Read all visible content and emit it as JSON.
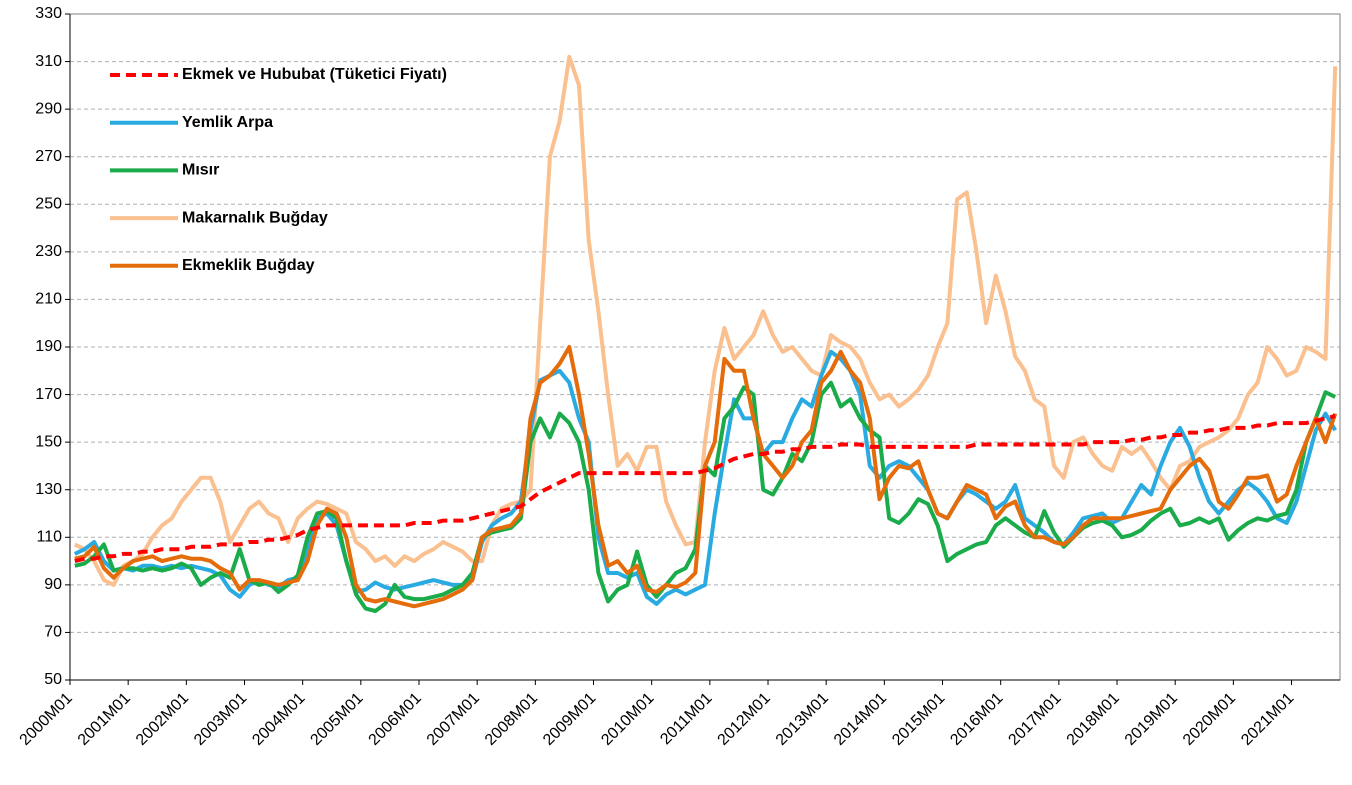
{
  "chart_data": {
    "type": "line",
    "categories": [
      "2000M01",
      null,
      null,
      null,
      null,
      null,
      "2001M01",
      null,
      null,
      null,
      null,
      null,
      "2002M01",
      null,
      null,
      null,
      null,
      null,
      "2003M01",
      null,
      null,
      null,
      null,
      null,
      "2004M01",
      null,
      null,
      null,
      null,
      null,
      "2005M01",
      null,
      null,
      null,
      null,
      null,
      "2006M01",
      null,
      null,
      null,
      null,
      null,
      "2007M01",
      null,
      null,
      null,
      null,
      null,
      "2008M01",
      null,
      null,
      null,
      null,
      null,
      "2009M01",
      null,
      null,
      null,
      null,
      null,
      "2010M01",
      null,
      null,
      null,
      null,
      null,
      "2011M01",
      null,
      null,
      null,
      null,
      null,
      "2012M01",
      null,
      null,
      null,
      null,
      null,
      "2013M01",
      null,
      null,
      null,
      null,
      null,
      "2014M01",
      null,
      null,
      null,
      null,
      null,
      "2015M01",
      null,
      null,
      null,
      null,
      null,
      "2016M01",
      null,
      null,
      null,
      null,
      null,
      "2017M01",
      null,
      null,
      null,
      null,
      null,
      "2018M01",
      null,
      null,
      null,
      null,
      null,
      "2019M01",
      null,
      null,
      null,
      null,
      null,
      "2020M01",
      null,
      null,
      null,
      null,
      null,
      "2021M01",
      null,
      null,
      null,
      null
    ],
    "series": [
      {
        "name": "Ekmek ve Hububat (Tüketici Fiyatı)",
        "color": "#ff0000",
        "line_style": "dashed",
        "values": [
          100,
          101,
          101,
          102,
          102,
          103,
          103,
          104,
          104,
          105,
          105,
          105,
          106,
          106,
          106,
          107,
          107,
          107,
          108,
          108,
          109,
          109,
          110,
          111,
          113,
          114,
          115,
          115,
          115,
          115,
          115,
          115,
          115,
          115,
          115,
          116,
          116,
          116,
          117,
          117,
          117,
          118,
          119,
          120,
          121,
          122,
          123,
          126,
          129,
          131,
          133,
          135,
          137,
          137,
          137,
          137,
          137,
          137,
          137,
          137,
          137,
          137,
          137,
          137,
          137,
          138,
          139,
          141,
          143,
          144,
          145,
          145,
          146,
          146,
          147,
          147,
          148,
          148,
          148,
          149,
          149,
          149,
          148,
          148,
          148,
          148,
          148,
          148,
          148,
          148,
          148,
          148,
          148,
          149,
          149,
          149,
          149,
          149,
          149,
          149,
          149,
          149,
          149,
          149,
          149,
          150,
          150,
          150,
          150,
          151,
          151,
          152,
          152,
          153,
          153,
          154,
          154,
          155,
          155,
          156,
          156,
          156,
          157,
          157,
          158,
          158,
          158,
          158,
          159,
          160,
          161
        ]
      },
      {
        "name": "Yemlik Arpa",
        "color": "#29abe2",
        "line_style": "solid",
        "values": [
          103,
          105,
          108,
          100,
          96,
          97,
          96,
          98,
          98,
          97,
          98,
          97,
          98,
          97,
          96,
          94,
          88,
          85,
          90,
          92,
          90,
          89,
          92,
          93,
          105,
          118,
          120,
          115,
          100,
          87,
          88,
          91,
          89,
          88,
          89,
          90,
          91,
          92,
          91,
          90,
          90,
          92,
          108,
          115,
          118,
          120,
          125,
          155,
          176,
          178,
          180,
          175,
          160,
          150,
          110,
          95,
          95,
          93,
          95,
          85,
          82,
          86,
          88,
          86,
          88,
          90,
          120,
          145,
          168,
          160,
          160,
          145,
          150,
          150,
          160,
          168,
          165,
          178,
          188,
          185,
          180,
          170,
          140,
          135,
          140,
          142,
          140,
          135,
          130,
          120,
          118,
          125,
          130,
          128,
          125,
          122,
          125,
          132,
          118,
          115,
          112,
          108,
          107,
          112,
          118,
          119,
          120,
          116,
          118,
          125,
          132,
          128,
          140,
          150,
          156,
          148,
          135,
          125,
          120,
          125,
          130,
          133,
          130,
          125,
          118,
          116,
          125,
          140,
          155,
          162,
          155
        ]
      },
      {
        "name": "Mısır",
        "color": "#1aab4a",
        "line_style": "solid",
        "values": [
          98,
          99,
          102,
          107,
          96,
          97,
          97,
          96,
          97,
          96,
          97,
          99,
          97,
          90,
          93,
          95,
          93,
          105,
          92,
          90,
          91,
          87,
          90,
          94,
          110,
          120,
          121,
          118,
          100,
          86,
          80,
          79,
          82,
          90,
          85,
          84,
          84,
          85,
          86,
          88,
          90,
          95,
          110,
          112,
          113,
          114,
          118,
          150,
          160,
          152,
          162,
          158,
          150,
          130,
          95,
          83,
          88,
          90,
          104,
          90,
          85,
          90,
          95,
          97,
          105,
          140,
          136,
          160,
          165,
          173,
          170,
          130,
          128,
          135,
          145,
          142,
          150,
          170,
          175,
          165,
          168,
          160,
          155,
          152,
          118,
          116,
          120,
          126,
          124,
          115,
          100,
          103,
          105,
          107,
          108,
          115,
          118,
          115,
          112,
          110,
          121,
          112,
          106,
          110,
          114,
          116,
          117,
          115,
          110,
          111,
          113,
          117,
          120,
          122,
          115,
          116,
          118,
          116,
          118,
          109,
          113,
          116,
          118,
          117,
          119,
          120,
          130,
          150,
          160,
          171,
          169
        ]
      },
      {
        "name": "Makarnalık Buğday",
        "color": "#fac090",
        "line_style": "solid",
        "values": [
          107,
          105,
          100,
          92,
          90,
          98,
          100,
          103,
          110,
          115,
          118,
          125,
          130,
          135,
          135,
          125,
          108,
          115,
          122,
          125,
          120,
          118,
          108,
          118,
          122,
          125,
          124,
          122,
          120,
          108,
          105,
          100,
          102,
          98,
          102,
          100,
          103,
          105,
          108,
          106,
          104,
          100,
          100,
          115,
          122,
          124,
          125,
          130,
          200,
          270,
          285,
          312,
          300,
          235,
          205,
          170,
          140,
          145,
          138,
          148,
          148,
          125,
          115,
          107,
          108,
          150,
          180,
          198,
          185,
          190,
          195,
          205,
          195,
          188,
          190,
          185,
          180,
          178,
          195,
          192,
          190,
          185,
          175,
          168,
          170,
          165,
          168,
          172,
          178,
          190,
          200,
          252,
          255,
          230,
          200,
          220,
          205,
          186,
          180,
          168,
          165,
          140,
          135,
          150,
          152,
          145,
          140,
          138,
          148,
          145,
          148,
          142,
          135,
          130,
          140,
          142,
          148,
          150,
          152,
          155,
          160,
          170,
          175,
          190,
          185,
          178,
          180,
          190,
          188,
          185,
          308
        ]
      },
      {
        "name": "Ekmeklik Buğday",
        "color": "#e46c0a",
        "line_style": "solid",
        "values": [
          101,
          102,
          106,
          97,
          93,
          97,
          100,
          101,
          102,
          100,
          101,
          102,
          101,
          101,
          100,
          97,
          95,
          88,
          92,
          92,
          91,
          90,
          91,
          92,
          100,
          115,
          122,
          120,
          110,
          90,
          84,
          83,
          84,
          83,
          82,
          81,
          82,
          83,
          84,
          86,
          88,
          92,
          110,
          113,
          114,
          115,
          120,
          160,
          175,
          178,
          183,
          190,
          170,
          145,
          115,
          98,
          100,
          95,
          98,
          88,
          87,
          90,
          89,
          91,
          95,
          140,
          150,
          185,
          180,
          180,
          160,
          145,
          140,
          135,
          140,
          150,
          155,
          175,
          180,
          188,
          180,
          175,
          160,
          126,
          135,
          140,
          139,
          142,
          130,
          120,
          118,
          125,
          132,
          130,
          128,
          118,
          123,
          125,
          115,
          110,
          110,
          108,
          107,
          110,
          115,
          118,
          118,
          118,
          118,
          119,
          120,
          121,
          122,
          130,
          135,
          140,
          143,
          138,
          125,
          122,
          128,
          135,
          135,
          136,
          125,
          128,
          140,
          150,
          160,
          150,
          162
        ]
      }
    ],
    "ylim": [
      50,
      330
    ],
    "yticks": [
      50,
      70,
      90,
      110,
      130,
      150,
      170,
      190,
      210,
      230,
      250,
      270,
      290,
      310,
      330
    ],
    "grid": true,
    "legend": "upper left"
  }
}
